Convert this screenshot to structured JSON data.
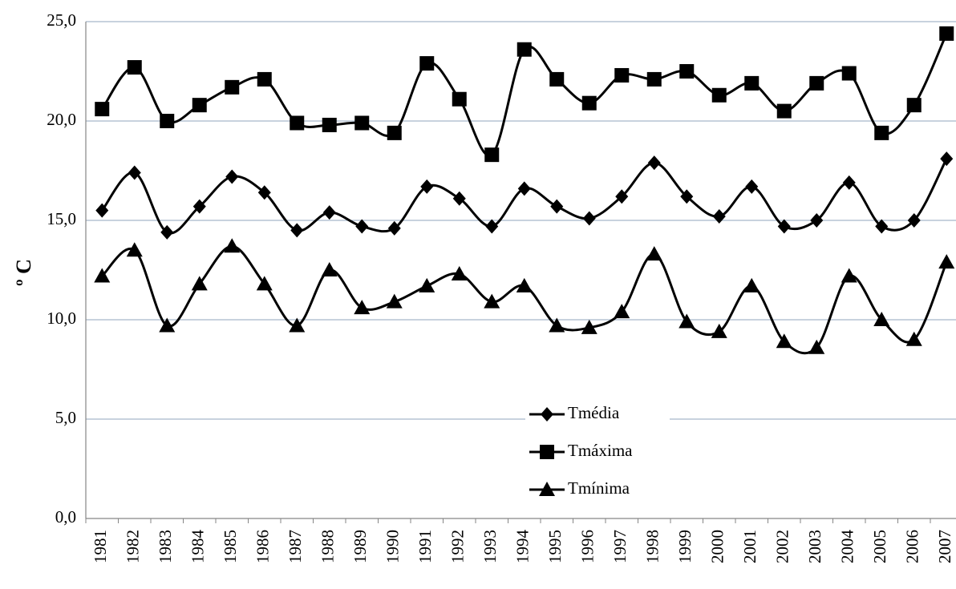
{
  "chart_data": {
    "type": "line",
    "ylabel": "º C",
    "smooth": true,
    "grid": true,
    "legend": "bottom",
    "categories": [
      "1981",
      "1982",
      "1983",
      "1984",
      "1985",
      "1986",
      "1987",
      "1988",
      "1989",
      "1990",
      "1991",
      "1992",
      "1993",
      "1994",
      "1995",
      "1996",
      "1997",
      "1998",
      "1999",
      "2000",
      "2001",
      "2002",
      "2003",
      "2004",
      "2005",
      "2006",
      "2007"
    ],
    "series": [
      {
        "name": "Tmédia",
        "color": "#000000",
        "marker": "diamond",
        "values": [
          15.5,
          17.4,
          14.4,
          15.7,
          17.2,
          16.4,
          14.5,
          15.4,
          14.7,
          14.6,
          16.7,
          16.1,
          14.7,
          16.6,
          15.7,
          15.1,
          16.2,
          17.9,
          16.2,
          15.2,
          16.7,
          14.7,
          15.0,
          16.9,
          14.7,
          15.0,
          18.1
        ]
      },
      {
        "name": "Tmáxima",
        "color": "#000000",
        "marker": "square",
        "values": [
          20.6,
          22.7,
          20.0,
          20.8,
          21.7,
          22.1,
          19.9,
          19.8,
          19.9,
          19.4,
          22.9,
          21.1,
          18.3,
          23.6,
          22.1,
          20.9,
          22.3,
          22.1,
          22.5,
          21.3,
          21.9,
          20.5,
          21.9,
          22.4,
          19.4,
          20.8,
          24.4
        ]
      },
      {
        "name": "Tmínima",
        "color": "#000000",
        "marker": "triangle",
        "values": [
          12.2,
          13.5,
          9.7,
          11.8,
          13.7,
          11.8,
          9.7,
          12.5,
          10.6,
          10.9,
          11.7,
          12.3,
          10.9,
          11.7,
          9.7,
          9.6,
          10.4,
          13.3,
          9.9,
          9.4,
          11.7,
          8.9,
          8.6,
          12.2,
          10.0,
          9.0,
          12.9
        ]
      }
    ],
    "ylim": [
      0,
      25
    ],
    "yticks": [
      {
        "value": 0,
        "label": "0,0"
      },
      {
        "value": 5,
        "label": "5,0"
      },
      {
        "value": 10,
        "label": "10,0"
      },
      {
        "value": 15,
        "label": "15,0"
      },
      {
        "value": 20,
        "label": "20,0"
      },
      {
        "value": 25,
        "label": "25,0"
      }
    ]
  }
}
